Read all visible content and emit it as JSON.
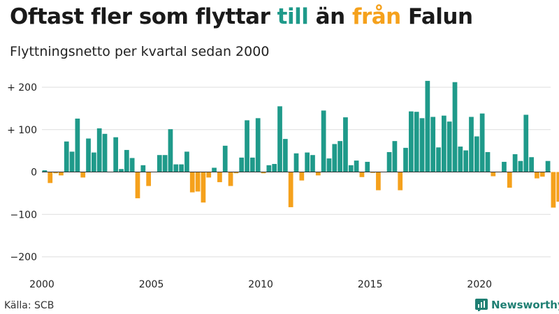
{
  "title": {
    "part1": "Oftast fler som flyttar ",
    "highlight_in": "till",
    "part2": " än ",
    "highlight_out": "från",
    "part3": " Falun"
  },
  "subtitle": "Flyttningsnetto per kvartal sedan 2000",
  "source": "Källa: SCB",
  "brand": "Newsworthy",
  "colors": {
    "positive": "#1f9a8a",
    "negative": "#f5a11c",
    "grid": "#dddddd",
    "text": "#1a1a1a"
  },
  "chart_data": {
    "type": "bar",
    "title": "Oftast fler som flyttar till än från Falun",
    "subtitle": "Flyttningsnetto per kvartal sedan 2000",
    "xlabel": "",
    "ylabel": "",
    "ylim": [
      -220,
      220
    ],
    "xlim": [
      2000,
      2023.25
    ],
    "yticks": [
      {
        "value": 200,
        "label": "+ 200"
      },
      {
        "value": 100,
        "label": "+ 100"
      },
      {
        "value": 0,
        "label": "0"
      },
      {
        "value": -100,
        "label": "−100"
      },
      {
        "value": -200,
        "label": "−200"
      }
    ],
    "xticks": [
      {
        "value": 2000,
        "label": "2000"
      },
      {
        "value": 2005,
        "label": "2005"
      },
      {
        "value": 2010,
        "label": "2010"
      },
      {
        "value": 2015,
        "label": "2015"
      },
      {
        "value": 2020,
        "label": "2020"
      }
    ],
    "grid": true,
    "start_year": 2000,
    "periods_per_year": 4,
    "values": [
      4,
      -26,
      -3,
      -8,
      72,
      48,
      126,
      -13,
      79,
      46,
      103,
      90,
      0,
      82,
      7,
      52,
      33,
      -62,
      16,
      -33,
      0,
      40,
      40,
      101,
      18,
      18,
      48,
      -48,
      -46,
      -72,
      -13,
      10,
      -24,
      62,
      -33,
      -3,
      34,
      122,
      34,
      127,
      -3,
      16,
      19,
      155,
      78,
      -83,
      44,
      -20,
      46,
      40,
      -8,
      145,
      32,
      66,
      73,
      129,
      16,
      27,
      -12,
      24,
      -2,
      -43,
      0,
      47,
      73,
      -43,
      57,
      143,
      142,
      127,
      215,
      130,
      58,
      133,
      119,
      212,
      60,
      51,
      130,
      84,
      138,
      47,
      -10,
      0,
      24,
      -37,
      42,
      26,
      135,
      35,
      -15,
      -11,
      26,
      -84,
      -70
    ]
  }
}
